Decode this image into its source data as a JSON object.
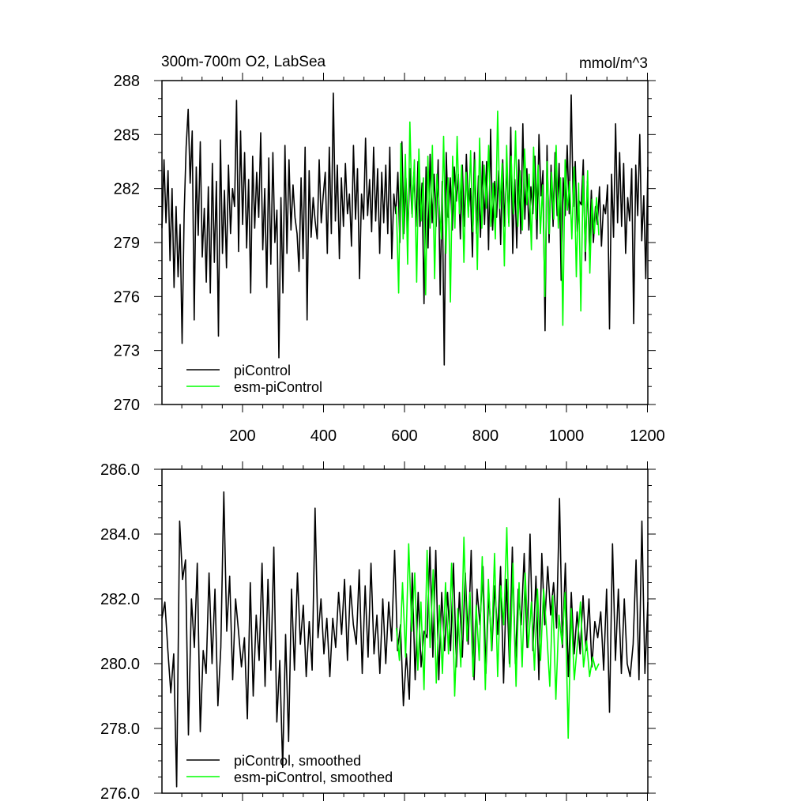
{
  "chart_data": [
    {
      "type": "line",
      "title": "300m-700m O2, LabSea",
      "units": "mmol/m^3",
      "xlim": [
        1,
        1201
      ],
      "ylim": [
        270,
        288
      ],
      "yticks": [
        270,
        273,
        276,
        279,
        282,
        285,
        288
      ],
      "ytick_labels": [
        "270",
        "273",
        "276",
        "279",
        "282",
        "285",
        "288"
      ],
      "xticks": [
        200,
        400,
        600,
        800,
        1000,
        1200
      ],
      "xtick_labels": [
        "200",
        "400",
        "600",
        "800",
        "1000",
        "1200"
      ],
      "legend_position": "bottom-left",
      "grid": false,
      "series": [
        {
          "name": "piControl",
          "color": "#000000",
          "x_start": 1,
          "x_end": 1201,
          "mean": 281.2,
          "values": [
            279.8,
            283.6,
            280.1,
            283.0,
            278.0,
            282.0,
            276.5,
            281.0,
            277.1,
            280.0,
            273.4,
            280.6,
            284.3,
            286.4,
            282.3,
            285.2,
            274.7,
            283.2,
            279.4,
            284.6,
            278.2,
            280.9,
            276.8,
            282.1,
            276.2,
            283.4,
            277.9,
            282.4,
            273.8,
            284.7,
            278.4,
            281.9,
            277.6,
            283.3,
            279.5,
            282.0,
            281.0,
            286.9,
            278.5,
            285.2,
            280.0,
            284.0,
            278.7,
            282.5,
            276.2,
            283.8,
            279.8,
            282.9,
            280.4,
            285.1,
            278.6,
            282.0,
            276.5,
            283.7,
            277.8,
            284.0,
            279.0,
            280.8,
            272.6,
            281.5,
            276.2,
            284.4,
            278.4,
            283.6,
            279.7,
            282.2,
            280.4,
            279.5,
            277.4,
            282.6,
            278.1,
            284.3,
            274.7,
            283.0,
            279.3,
            281.5,
            280.2,
            279.2,
            283.6,
            280.1,
            281.6,
            282.9,
            278.4,
            284.3,
            279.5,
            287.3,
            280.2,
            283.3,
            278.1,
            282.6,
            279.9,
            283.4,
            280.6,
            281.7,
            278.8,
            284.4,
            280.3,
            283.1,
            277.0,
            281.7,
            280.3,
            284.8,
            280.5,
            282.5,
            279.6,
            284.3,
            280.2,
            283.1,
            278.4,
            282.9,
            280.1,
            283.3,
            279.5,
            284.3,
            278.1,
            281.7,
            280.6,
            282.9,
            279.0,
            284.6,
            279.5,
            282.6,
            279.6,
            283.1,
            280.6,
            282.9,
            279.9,
            283.5,
            279.9,
            282.3,
            275.6,
            283.2,
            278.7,
            283.9,
            280.1,
            282.8,
            279.9,
            283.6,
            276.1,
            282.4,
            272.2,
            284.0,
            280.4,
            282.6,
            279.7,
            283.2,
            281.3,
            282.8,
            279.2,
            283.3,
            279.9,
            283.9,
            280.8,
            282.0,
            278.2,
            284.0,
            279.5,
            282.7,
            279.3,
            283.5,
            280.0,
            283.5,
            278.6,
            285.3,
            279.7,
            282.4,
            280.4,
            283.0,
            278.9,
            283.6,
            279.9,
            283.4,
            280.1,
            285.4,
            278.4,
            282.5,
            278.7,
            283.6,
            279.5,
            285.6,
            280.3,
            283.1,
            279.7,
            282.1,
            280.6,
            283.8,
            279.2,
            285.0,
            281.6,
            283.0,
            274.1,
            284.4,
            279.0,
            283.3,
            279.9,
            284.0,
            280.5,
            283.4,
            276.9,
            282.6,
            280.5,
            284.4,
            280.6,
            287.2,
            281.0,
            283.5,
            279.6,
            281.3,
            281.1,
            283.6,
            278.0,
            282.4,
            278.6,
            281.9,
            279.0,
            281.0,
            280.0,
            282.1,
            278.8,
            281.1,
            280.6,
            282.2,
            274.2,
            282.8,
            279.3,
            285.6,
            280.1,
            284.0,
            279.9,
            283.4,
            278.4,
            281.5,
            280.2,
            283.1,
            274.5,
            283.3,
            280.5,
            285.0,
            279.1,
            281.6,
            277.0,
            283.2
          ]
        },
        {
          "name": "esm-piControl",
          "color": "#00ff00",
          "x_start": 580,
          "x_end": 1080,
          "mean": 281.0,
          "values": [
            281.0,
            276.2,
            284.5,
            279.2,
            283.9,
            277.8,
            285.7,
            280.4,
            283.6,
            276.8,
            284.2,
            280.2,
            282.6,
            276.1,
            283.8,
            279.8,
            284.4,
            277.0,
            282.8,
            281.1,
            279.2,
            284.9,
            278.4,
            282.6,
            275.7,
            283.8,
            279.8,
            284.9,
            280.6,
            283.3,
            277.9,
            282.9,
            280.4,
            284.1,
            279.6,
            283.6,
            277.5,
            284.8,
            279.8,
            283.3,
            280.9,
            284.4,
            279.9,
            282.3,
            279.2,
            286.3,
            280.9,
            283.4,
            277.7,
            284.4,
            279.9,
            283.8,
            280.6,
            285.2,
            279.9,
            283.0,
            279.7,
            284.2,
            281.1,
            282.8,
            278.6,
            284.3,
            280.3,
            283.3,
            279.5,
            282.2,
            276.0,
            283.5,
            279.5,
            282.9,
            280.3,
            284.4,
            279.8,
            282.6,
            274.4,
            283.6,
            280.8,
            282.4,
            279.2,
            283.2,
            277.1,
            282.3,
            275.2,
            282.7,
            278.5,
            283.0,
            277.3,
            281.4,
            279.5,
            281.5,
            279.4
          ]
        }
      ],
      "legend": [
        {
          "label": "piControl",
          "color": "#000000"
        },
        {
          "label": "esm-piControl",
          "color": "#00ff00"
        }
      ]
    },
    {
      "type": "line",
      "title": "",
      "xlim": [
        1,
        1201
      ],
      "ylim": [
        276,
        286
      ],
      "yticks": [
        276,
        278,
        280,
        282,
        284,
        286
      ],
      "ytick_labels": [
        "276.0",
        "278.0",
        "280.0",
        "282.0",
        "284.0",
        "286.0"
      ],
      "xticks": [
        200,
        400,
        600,
        800,
        1000,
        1200
      ],
      "xtick_labels": [],
      "legend_position": "bottom-left",
      "grid": false,
      "series": [
        {
          "name": "piControl, smoothed",
          "color": "#000000",
          "x_start": 1,
          "x_end": 1201,
          "values": [
            281.4,
            281.9,
            280.4,
            279.1,
            280.3,
            276.2,
            284.4,
            282.6,
            283.2,
            277.8,
            282.0,
            280.5,
            283.1,
            277.9,
            280.4,
            279.7,
            282.8,
            280.0,
            282.3,
            278.7,
            280.5,
            285.3,
            281.0,
            282.7,
            279.5,
            282.0,
            281.0,
            279.9,
            280.8,
            278.3,
            282.5,
            279.0,
            281.5,
            280.1,
            283.1,
            279.3,
            282.6,
            279.8,
            283.6,
            278.2,
            280.1,
            276.8,
            280.9,
            277.6,
            282.3,
            279.8,
            282.8,
            280.6,
            281.8,
            279.6,
            281.3,
            279.8,
            284.8,
            280.8,
            282.0,
            280.3,
            281.4,
            279.6,
            281.4,
            280.5,
            282.2,
            280.9,
            282.6,
            280.1,
            282.4,
            281.2,
            280.6,
            282.9,
            279.7,
            282.4,
            280.2,
            283.1,
            280.3,
            281.5,
            279.7,
            282.0,
            280.0,
            281.9,
            280.7,
            283.5,
            280.4,
            281.2,
            278.7,
            280.3,
            278.9,
            282.8,
            279.5,
            282.2,
            279.9,
            281.0,
            280.8,
            283.6,
            280.2,
            283.5,
            279.5,
            282.2,
            280.4,
            282.2,
            280.4,
            283.1,
            279.9,
            282.2,
            280.2,
            282.8,
            280.6,
            283.5,
            279.5,
            282.3,
            281.2,
            283.0,
            279.7,
            282.2,
            280.4,
            282.4,
            280.9,
            283.0,
            279.4,
            282.6,
            280.0,
            283.6,
            280.0,
            282.3,
            281.2,
            283.4,
            280.5,
            284.0,
            280.4,
            282.7,
            279.5,
            283.4,
            281.2,
            283.0,
            281.5,
            282.5,
            281.1,
            285.1,
            280.5,
            283.1,
            279.6,
            282.2,
            280.3,
            281.6,
            280.3,
            282.1,
            280.4,
            282.0,
            279.9,
            281.3,
            280.8,
            281.6,
            279.8,
            282.3,
            278.5,
            283.7,
            280.1,
            282.3,
            279.7,
            282.0,
            280.0,
            279.6,
            280.6,
            283.2,
            279.5,
            284.4,
            279.7,
            281.9
          ]
        },
        {
          "name": "esm-piControl, smoothed",
          "color": "#00ff00",
          "x_start": 580,
          "x_end": 1080,
          "values": [
            281.1,
            280.1,
            282.5,
            280.2,
            283.7,
            281.0,
            282.8,
            279.8,
            281.9,
            279.2,
            283.5,
            280.5,
            282.9,
            279.4,
            281.8,
            279.7,
            282.5,
            280.3,
            283.1,
            279.0,
            281.7,
            279.9,
            283.9,
            280.7,
            282.2,
            279.6,
            281.8,
            280.1,
            283.3,
            279.2,
            282.6,
            280.4,
            283.4,
            279.6,
            282.4,
            281.2,
            284.2,
            279.9,
            283.1,
            279.3,
            282.5,
            279.9,
            282.8,
            280.5,
            281.9,
            279.8,
            282.3,
            280.1,
            282.3,
            281.0,
            279.3,
            282.1,
            278.9,
            281.5,
            280.6,
            282.2,
            277.7,
            281.7,
            279.5,
            280.6,
            281.9,
            279.9,
            280.7,
            279.6,
            280.2,
            279.8,
            280.0
          ]
        }
      ],
      "legend": [
        {
          "label": "piControl, smoothed",
          "color": "#000000"
        },
        {
          "label": "esm-piControl, smoothed",
          "color": "#00ff00"
        }
      ]
    }
  ]
}
